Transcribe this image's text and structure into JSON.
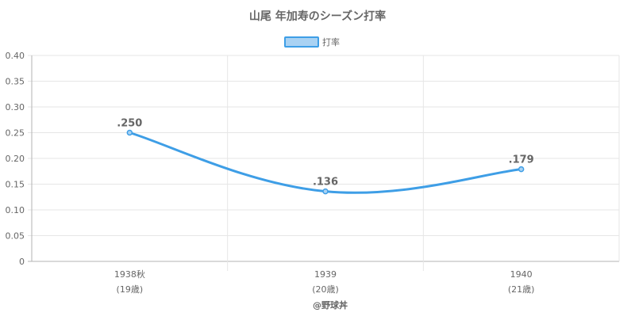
{
  "chart_data": {
    "type": "line",
    "title": "山尾 年加寿のシーズン打率",
    "legend": {
      "position": "top-center",
      "label": "打率"
    },
    "categories": [
      {
        "year": "1938秋",
        "age": "(19歳)"
      },
      {
        "year": "1939",
        "age": "(20歳)"
      },
      {
        "year": "1940",
        "age": "(21歳)"
      }
    ],
    "series": [
      {
        "name": "打率",
        "values": [
          0.25,
          0.136,
          0.179
        ],
        "labels": [
          ".250",
          ".136",
          ".179"
        ]
      }
    ],
    "ylim": [
      0,
      0.4
    ],
    "yticks": [
      "0",
      "0.05",
      "0.10",
      "0.15",
      "0.20",
      "0.25",
      "0.30",
      "0.35",
      "0.40"
    ],
    "grid": true,
    "colors": {
      "line": "#3e9ee6",
      "legend_fill": "#a9d2f3",
      "legend_border": "#3e9ee6",
      "grid": "#e6e6e6",
      "axis": "#b3b3b3",
      "text": "#666666",
      "title": "#666666"
    },
    "credit": "@野球丼"
  }
}
